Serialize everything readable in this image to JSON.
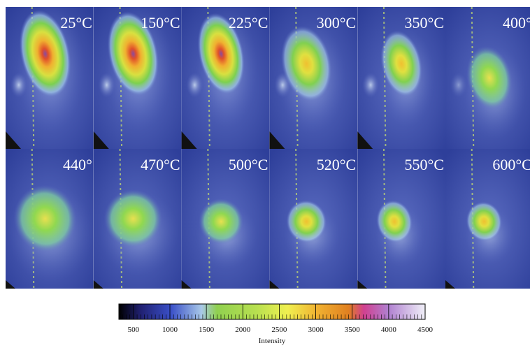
{
  "panels": [
    {
      "label": "25°C"
    },
    {
      "label": "150°C"
    },
    {
      "label": "225°C"
    },
    {
      "label": "300°C"
    },
    {
      "label": "350°C"
    },
    {
      "label": "400°"
    },
    {
      "label": "440°"
    },
    {
      "label": "470°C"
    },
    {
      "label": "500°C"
    },
    {
      "label": "520°C"
    },
    {
      "label": "550°C"
    },
    {
      "label": "600°C"
    }
  ],
  "colorbar": {
    "label": "Intensity",
    "lim": [
      300,
      4500
    ],
    "ticks": [
      500,
      1000,
      1500,
      2000,
      2500,
      3000,
      3500,
      4000,
      4500
    ]
  }
}
